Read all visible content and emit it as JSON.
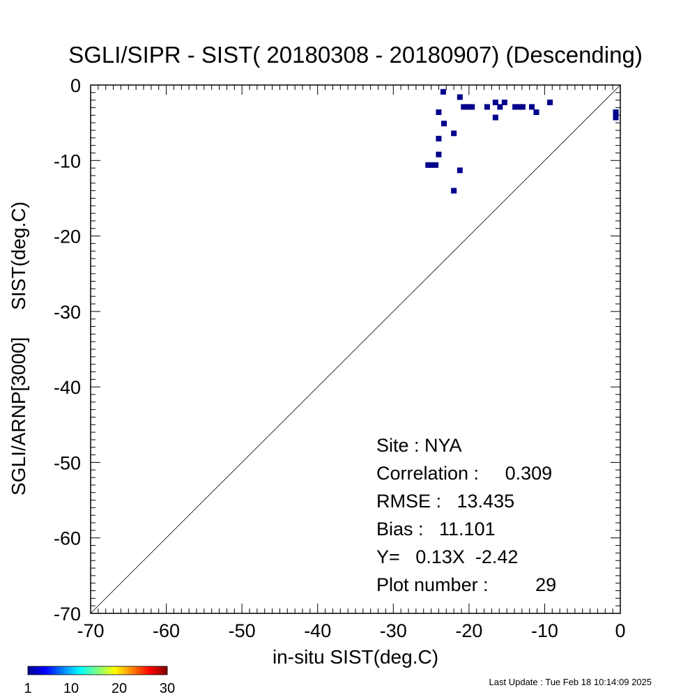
{
  "chart_data": {
    "type": "scatter",
    "title": "SGLI/SIPR - SIST( 20180308 - 20180907) (Descending)",
    "xlabel": "in-situ SIST(deg.C)",
    "ylabel": "SGLI/ARNP[3000]     SIST(deg.C)",
    "xlim": [
      -70,
      0
    ],
    "ylim": [
      -70,
      0
    ],
    "x_ticks": [
      "-70",
      "-60",
      "-50",
      "-40",
      "-30",
      "-20",
      "-10",
      "0"
    ],
    "y_ticks": [
      "0",
      "-10",
      "-20",
      "-30",
      "-40",
      "-50",
      "-60",
      "-70"
    ],
    "reference_line": "1:1",
    "point_color": "#00008b",
    "points": [
      {
        "x": -23.4,
        "y": -0.9
      },
      {
        "x": -21.2,
        "y": -1.6
      },
      {
        "x": -24.0,
        "y": -3.6
      },
      {
        "x": -23.3,
        "y": -5.1
      },
      {
        "x": -24.0,
        "y": -7.1
      },
      {
        "x": -22.0,
        "y": -6.4
      },
      {
        "x": -24.0,
        "y": -9.2
      },
      {
        "x": -25.4,
        "y": -10.6
      },
      {
        "x": -24.9,
        "y": -10.6
      },
      {
        "x": -24.4,
        "y": -10.6
      },
      {
        "x": -21.2,
        "y": -11.3
      },
      {
        "x": -22.0,
        "y": -14.0
      },
      {
        "x": -20.7,
        "y": -2.9
      },
      {
        "x": -20.2,
        "y": -2.9
      },
      {
        "x": -19.6,
        "y": -2.9
      },
      {
        "x": -17.6,
        "y": -2.9
      },
      {
        "x": -16.5,
        "y": -2.3
      },
      {
        "x": -15.9,
        "y": -2.9
      },
      {
        "x": -15.3,
        "y": -2.3
      },
      {
        "x": -16.5,
        "y": -4.3
      },
      {
        "x": -13.9,
        "y": -2.9
      },
      {
        "x": -13.4,
        "y": -2.9
      },
      {
        "x": -12.9,
        "y": -2.9
      },
      {
        "x": -11.7,
        "y": -2.9
      },
      {
        "x": -11.1,
        "y": -3.6
      },
      {
        "x": -9.3,
        "y": -2.3
      },
      {
        "x": -0.6,
        "y": -3.6
      },
      {
        "x": -0.6,
        "y": -4.1
      },
      {
        "x": -0.6,
        "y": -4.3
      }
    ],
    "stats": [
      {
        "label": "Site : NYA"
      },
      {
        "label": "Correlation :     0.309"
      },
      {
        "label": "RMSE :   13.435"
      },
      {
        "label": "Bias :   11.101"
      },
      {
        "label": "Y=   0.13X  -2.42"
      },
      {
        "label": "Plot number :         29"
      }
    ],
    "colorbar": {
      "ticks": [
        "1",
        "10",
        "20",
        "30"
      ],
      "colors": [
        "#00008b",
        "#0000ff",
        "#0080ff",
        "#00ffff",
        "#80ff80",
        "#ffff00",
        "#ff8000",
        "#ff0000",
        "#800000"
      ]
    },
    "footer": "Last Update : Tue Feb 18 10:14:09 2025"
  }
}
